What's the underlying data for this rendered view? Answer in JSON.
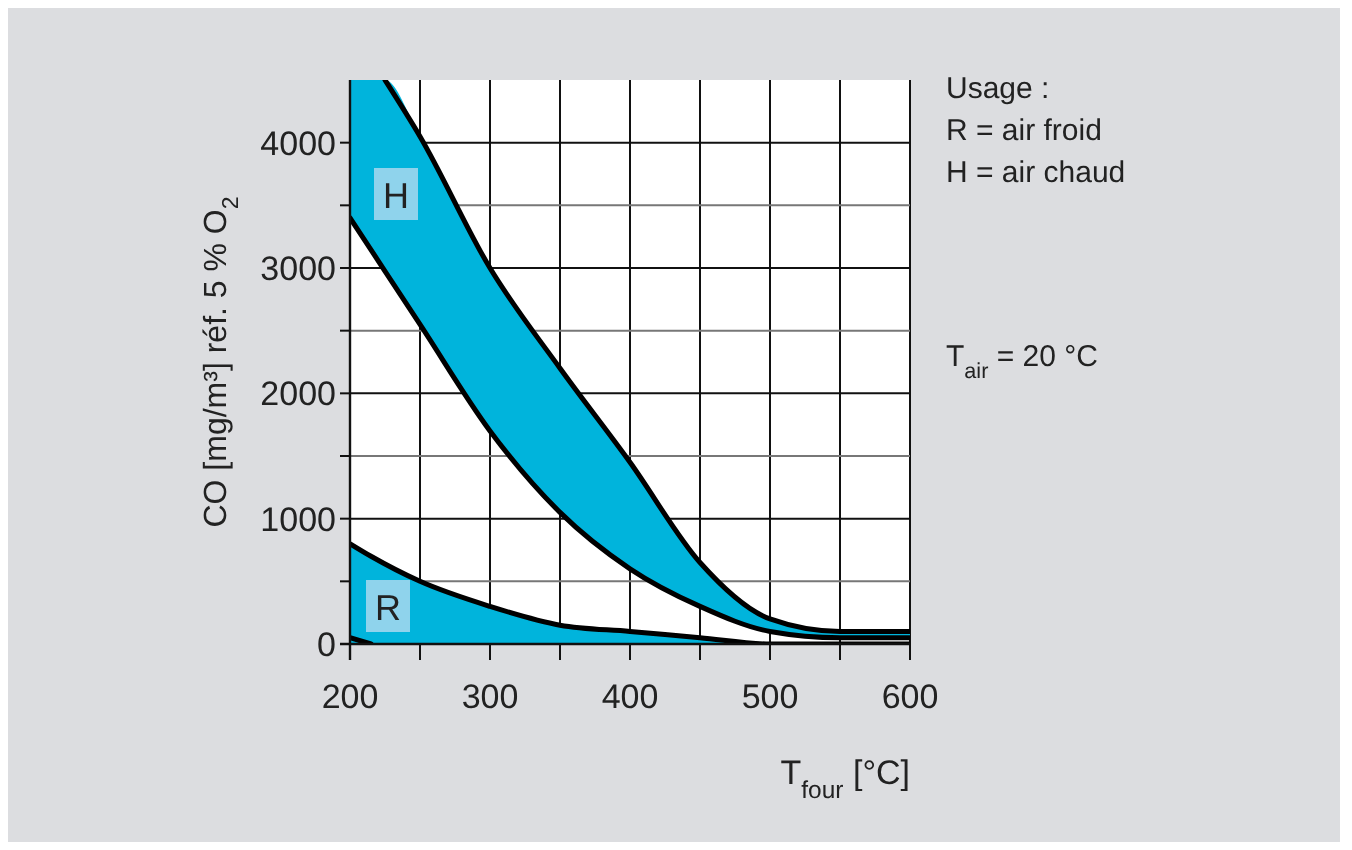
{
  "chart_data": {
    "type": "line",
    "xlabel": "T$_{four}$ [°C]",
    "ylabel": "CO [mg/m³] réf. 5 % O$_{2}$",
    "xlim": [
      200,
      600
    ],
    "ylim": [
      0,
      4500
    ],
    "xticks": [
      200,
      {
        "value": 250,
        "label": null
      },
      300,
      {
        "value": 350,
        "label": null
      },
      400,
      {
        "value": 450,
        "label": null
      },
      500,
      {
        "value": 550,
        "label": null
      },
      600
    ],
    "yticks": [
      0,
      {
        "value": 500,
        "label": null
      },
      1000,
      {
        "value": 1500,
        "label": null
      },
      2000,
      {
        "value": 2500,
        "label": null
      },
      3000,
      {
        "value": 3500,
        "label": null
      },
      4000
    ],
    "grid": true,
    "marker": "none",
    "line_style": "solid",
    "series": [
      {
        "color": "#000000",
        "x": [
          200,
          225,
          250,
          300,
          350,
          400,
          450,
          500,
          550,
          600
        ],
        "values": [
          null,
          4500,
          4050,
          3000,
          2200,
          1450,
          650,
          200,
          100,
          100
        ],
        "lower": [
          3400,
          3000,
          2550,
          1700,
          1050,
          600,
          300,
          100,
          50,
          50
        ],
        "upper": [
          4500,
          4500,
          4050,
          3000,
          2200,
          1450,
          650,
          200,
          100,
          100
        ]
      },
      {
        "color": "#000000",
        "x": [
          200,
          250,
          300,
          350,
          400,
          450,
          500,
          550,
          600
        ],
        "values": [
          3400,
          2550,
          1700,
          1050,
          600,
          300,
          100,
          50,
          50
        ]
      },
      {
        "type": "area",
        "color": "#00b4dc",
        "x": [
          200,
          215,
          250,
          300,
          350,
          400,
          450,
          500,
          550,
          600
        ],
        "values": [
          800,
          700,
          500,
          300,
          150,
          100,
          50,
          0,
          0,
          0
        ]
      },
      {
        "color": "#000000",
        "x": [
          200,
          215
        ],
        "values": [
          50,
          0
        ]
      }
    ],
    "annotations": [
      "H",
      "R",
      "Usage :",
      "R = air froid",
      "H = air chaud",
      "T$_{air}$ = 20 °C"
    ]
  }
}
